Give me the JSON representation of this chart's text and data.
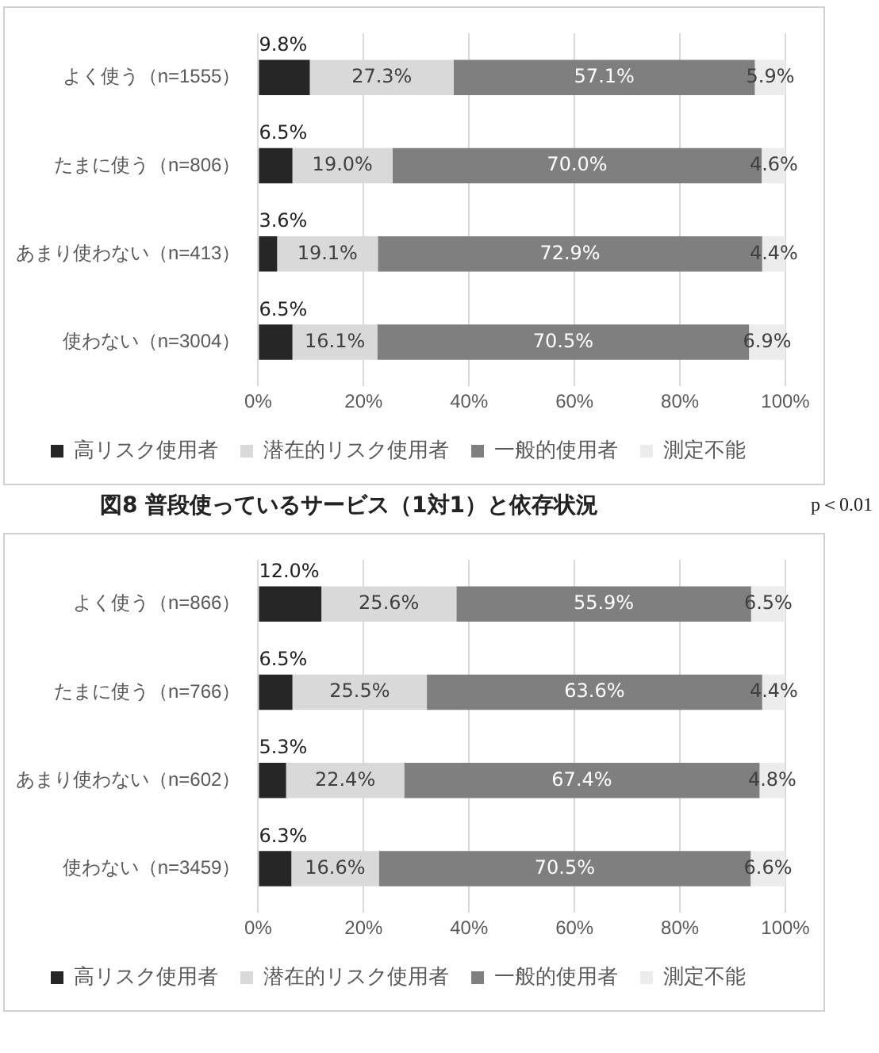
{
  "chart_data": [
    {
      "type": "bar",
      "orientation": "horizontal",
      "stacked": true,
      "categories": [
        "よく使う（n=1555）",
        "たまに使う（n=806）",
        "あまり使わない（n=413）",
        "使わない（n=3004）"
      ],
      "series": [
        {
          "name": "高リスク使用者",
          "color": "#262626",
          "values": [
            9.8,
            6.5,
            3.6,
            6.5
          ],
          "value_labels": [
            "9.8%",
            "6.5%",
            "3.6%",
            "6.5%"
          ]
        },
        {
          "name": "潜在的リスク使用者",
          "color": "#d9d9d9",
          "values": [
            27.3,
            19.0,
            19.1,
            16.1
          ],
          "value_labels": [
            "27.3%",
            "19.0%",
            "19.1%",
            "16.1%"
          ]
        },
        {
          "name": "一般的使用者",
          "color": "#7f7f7f",
          "values": [
            57.1,
            70.0,
            72.9,
            70.5
          ],
          "value_labels": [
            "57.1%",
            "70.0%",
            "72.9%",
            "70.5%"
          ]
        },
        {
          "name": "測定不能",
          "color": "#ececec",
          "values": [
            5.9,
            4.6,
            4.4,
            6.9
          ],
          "value_labels": [
            "5.9%",
            "4.6%",
            "4.4%",
            "6.9%"
          ]
        }
      ],
      "xlim": [
        0,
        100
      ],
      "xticks": [
        {
          "value": 0,
          "label": "0%"
        },
        {
          "value": 20,
          "label": "20%"
        },
        {
          "value": 40,
          "label": "40%"
        },
        {
          "value": 60,
          "label": "60%"
        },
        {
          "value": 80,
          "label": "80%"
        },
        {
          "value": 100,
          "label": "100%"
        }
      ],
      "grid": "x",
      "legend": "bottom",
      "annotations": [
        "図8 普段使っているサービス（1対1）と依存状況",
        "p＜0.01"
      ]
    },
    {
      "type": "bar",
      "orientation": "horizontal",
      "stacked": true,
      "categories": [
        "よく使う（n=866）",
        "たまに使う（n=766）",
        "あまり使わない（n=602）",
        "使わない（n=3459）"
      ],
      "series": [
        {
          "name": "高リスク使用者",
          "color": "#262626",
          "values": [
            12.0,
            6.5,
            5.3,
            6.3
          ],
          "value_labels": [
            "12.0%",
            "6.5%",
            "5.3%",
            "6.3%"
          ]
        },
        {
          "name": "潜在的リスク使用者",
          "color": "#d9d9d9",
          "values": [
            25.6,
            25.5,
            22.4,
            16.6
          ],
          "value_labels": [
            "25.6%",
            "25.5%",
            "22.4%",
            "16.6%"
          ]
        },
        {
          "name": "一般的使用者",
          "color": "#7f7f7f",
          "values": [
            55.9,
            63.6,
            67.4,
            70.5
          ],
          "value_labels": [
            "55.9%",
            "63.6%",
            "67.4%",
            "70.5%"
          ]
        },
        {
          "name": "測定不能",
          "color": "#ececec",
          "values": [
            6.5,
            4.4,
            4.8,
            6.6
          ],
          "value_labels": [
            "6.5%",
            "4.4%",
            "4.8%",
            "6.6%"
          ]
        }
      ],
      "xlim": [
        0,
        100
      ],
      "xticks": [
        {
          "value": 0,
          "label": "0%"
        },
        {
          "value": 20,
          "label": "20%"
        },
        {
          "value": 40,
          "label": "40%"
        },
        {
          "value": 60,
          "label": "60%"
        },
        {
          "value": 80,
          "label": "80%"
        },
        {
          "value": 100,
          "label": "100%"
        }
      ],
      "grid": "x",
      "legend": "bottom"
    }
  ]
}
